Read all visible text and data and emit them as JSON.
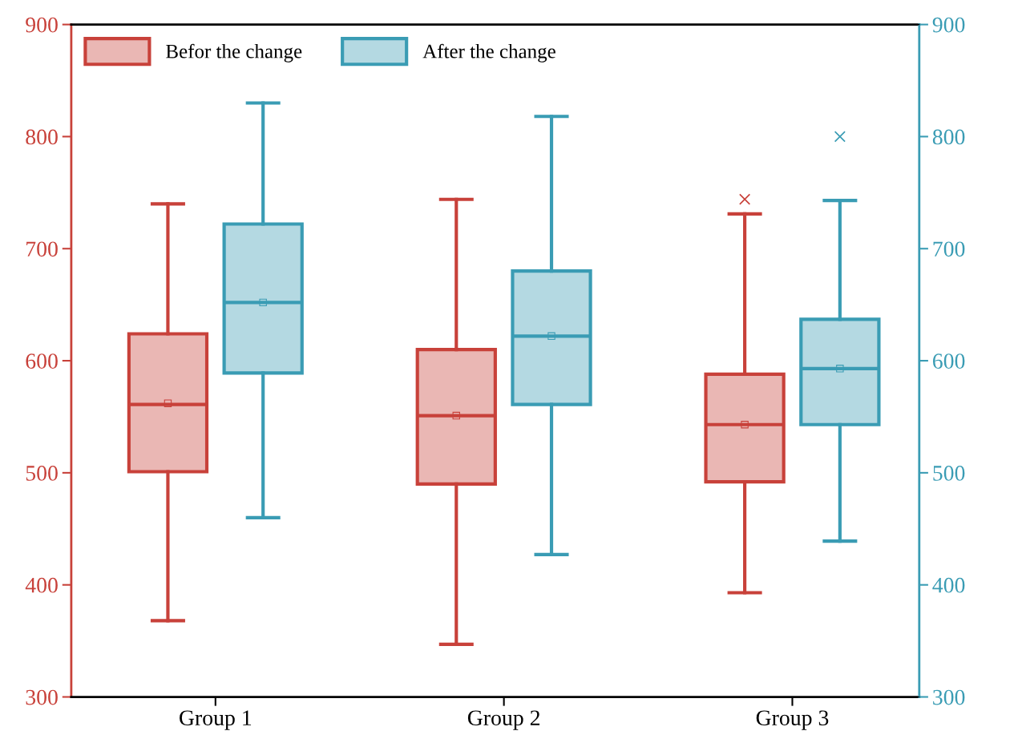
{
  "chart_data": {
    "type": "box",
    "categories": [
      "Group 1",
      "Group 2",
      "Group 3"
    ],
    "series": [
      {
        "name": "Befor the change",
        "color": "#c8413a",
        "boxes": [
          {
            "low": 368,
            "q1": 501,
            "median": 561,
            "q3": 624,
            "high": 740,
            "mean": 562
          },
          {
            "low": 347,
            "q1": 490,
            "median": 551,
            "q3": 610,
            "high": 744,
            "mean": 551
          },
          {
            "low": 393,
            "q1": 492,
            "median": 543,
            "q3": 588,
            "high": 731,
            "mean": 543,
            "outliers": [
              744
            ]
          }
        ]
      },
      {
        "name": "After the change",
        "color": "#3a9cb4",
        "axis": "y2",
        "boxes": [
          {
            "low": 460,
            "q1": 589,
            "median": 652,
            "q3": 722,
            "high": 830,
            "mean": 652
          },
          {
            "low": 427,
            "q1": 561,
            "median": 622,
            "q3": 680,
            "high": 818,
            "mean": 622
          },
          {
            "low": 439,
            "q1": 543,
            "median": 593,
            "q3": 637,
            "high": 743,
            "mean": 593,
            "outliers": [
              800
            ]
          }
        ]
      }
    ],
    "ylim": [
      300,
      900
    ],
    "yticks": [
      300,
      400,
      500,
      600,
      700,
      800,
      900
    ],
    "y2lim": [
      300,
      900
    ],
    "y2ticks": [
      300,
      400,
      500,
      600,
      700,
      800,
      900
    ],
    "legend": "top left",
    "grid": false,
    "marker": "cross"
  }
}
